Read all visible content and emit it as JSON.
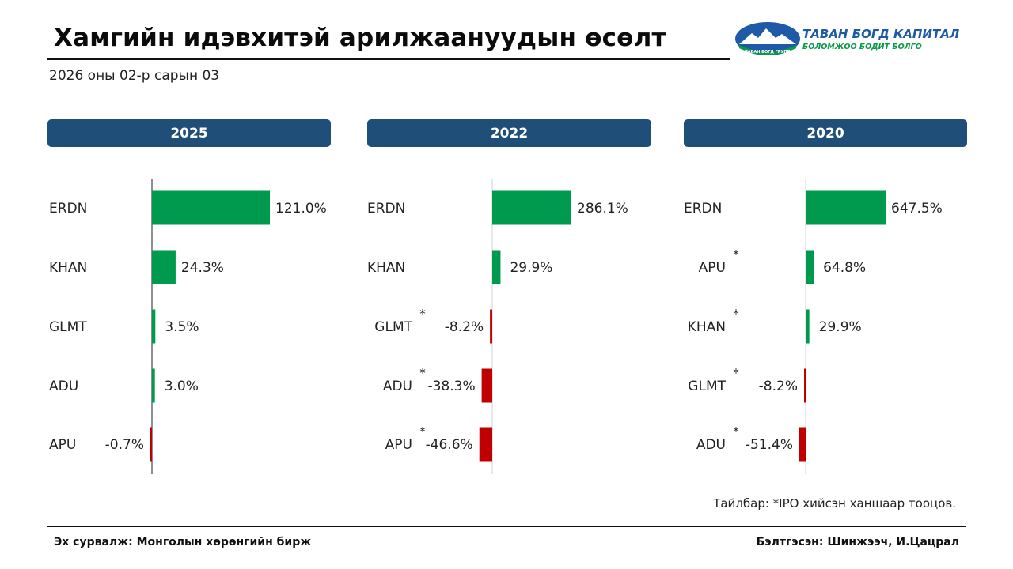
{
  "header": {
    "title": "Хамгийн идэвхитэй арилжаануудын өсөлт",
    "date": "2026 оны 02-р сарын 03"
  },
  "logo": {
    "name": "ТАВАН БОГД КАПИТАЛ",
    "tagline": "БОЛОМЖОО БОДИТ БОЛГО",
    "group_text": "ТАВАН БОГД ГРУПП",
    "colors": {
      "blue": "#1e5aa8",
      "green": "#0a9a4a"
    }
  },
  "colors": {
    "header_bg": "#1f4e79",
    "positive": "#009a4e",
    "negative": "#c00000"
  },
  "chart_data": [
    {
      "type": "bar",
      "orientation": "horizontal",
      "title": "2025",
      "categories": [
        "ERDN",
        "KHAN",
        "GLMT",
        "ADU",
        "APU"
      ],
      "values": [
        121.0,
        24.3,
        3.5,
        3.0,
        -0.7
      ],
      "labels": [
        "121.0%",
        "24.3%",
        "3.5%",
        "3.0%",
        "-0.7%"
      ],
      "ipo_flags": [
        false,
        false,
        false,
        false,
        false
      ],
      "xlim": [
        -30,
        150
      ]
    },
    {
      "type": "bar",
      "orientation": "horizontal",
      "title": "2022",
      "categories": [
        "ERDN",
        "KHAN",
        "GLMT",
        "ADU",
        "APU"
      ],
      "values": [
        286.1,
        29.9,
        -8.2,
        -38.3,
        -46.6
      ],
      "labels": [
        "286.1%",
        "29.9%",
        "-8.2%",
        "-38.3%",
        "-46.6%"
      ],
      "ipo_flags": [
        false,
        false,
        true,
        true,
        true
      ],
      "xlim": [
        -50,
        1000
      ]
    },
    {
      "type": "bar",
      "orientation": "horizontal",
      "title": "2020",
      "categories": [
        "ERDN",
        "APU",
        "KHAN",
        "GLMT",
        "ADU"
      ],
      "values": [
        647.5,
        64.8,
        29.9,
        -8.2,
        -51.4
      ],
      "labels": [
        "647.5%",
        "64.8%",
        "29.9%",
        "-8.2%",
        "-51.4%"
      ],
      "ipo_flags": [
        false,
        true,
        true,
        true,
        true
      ],
      "xlim": [
        -50,
        2000
      ]
    }
  ],
  "footnote": "Тайлбар: *IPO хийсэн ханшаар тооцов.",
  "footer": {
    "source": "Эх сурвалж: Монголын хөрөнгийн бирж",
    "author": "Бэлтгэсэн: Шинжээч, И.Цацрал"
  }
}
